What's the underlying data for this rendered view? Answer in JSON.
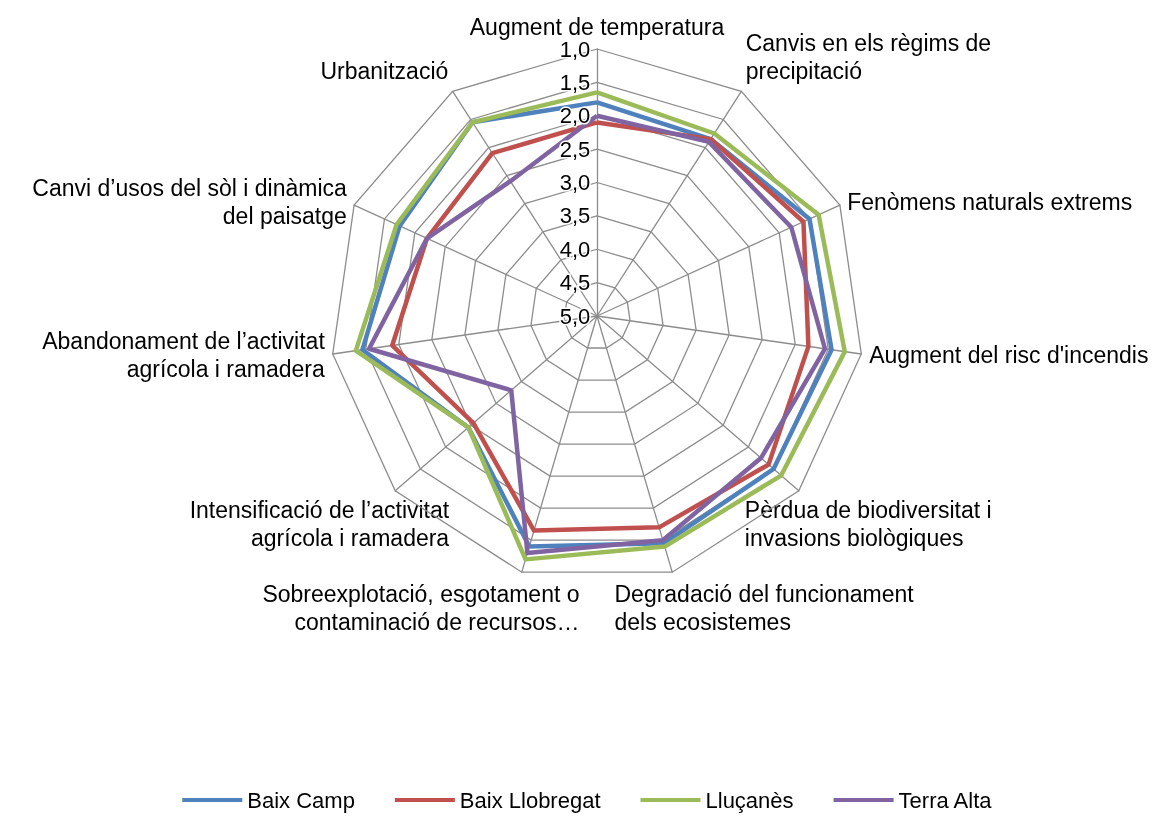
{
  "chart_data": {
    "type": "radar",
    "categories": [
      "Augment de temperatura",
      "Canvis en els règims de precipitació",
      "Fenòmens naturals extrems",
      "Augment del risc d'incendis",
      "Pèrdua de biodiversitat i invasions biològiques",
      "Degradació del funcionament dels ecosistemes",
      "Sobreexplotació, esgotament o contaminació de recursos…",
      "Intensificació de l’activitat agrícola i ramadera",
      "Abandonament de l’activitat agrícola i ramadera",
      "Canvi d’usos del sòl i dinàmica del paisatge",
      "Urbanització"
    ],
    "series": [
      {
        "name": "Baix Camp",
        "color": "#4f81bd",
        "values": [
          1.8,
          1.85,
          1.5,
          1.45,
          1.5,
          1.45,
          1.4,
          2.45,
          1.45,
          1.75,
          1.55
        ]
      },
      {
        "name": "Baix Llobregat",
        "color": "#c0504d",
        "values": [
          2.1,
          1.85,
          1.6,
          1.8,
          1.6,
          1.7,
          1.65,
          2.55,
          1.9,
          2.2,
          2.1
        ]
      },
      {
        "name": "Lluçanès",
        "color": "#9bbb59",
        "values": [
          1.65,
          1.75,
          1.35,
          1.25,
          1.35,
          1.4,
          1.2,
          2.45,
          1.35,
          1.7,
          1.55
        ]
      },
      {
        "name": "Terra Alta",
        "color": "#8064a2",
        "values": [
          2.0,
          1.9,
          1.8,
          1.55,
          1.75,
          1.5,
          1.3,
          3.3,
          1.55,
          2.2,
          2.6
        ]
      }
    ],
    "ylim": [
      5,
      1
    ],
    "yticks": [
      {
        "value": 1,
        "label": "1,0"
      },
      {
        "value": 1.5,
        "label": "1,5"
      },
      {
        "value": 2,
        "label": "2,0"
      },
      {
        "value": 2.5,
        "label": "2,5"
      },
      {
        "value": 3,
        "label": "3,0"
      },
      {
        "value": 3.5,
        "label": "3,5"
      },
      {
        "value": 4,
        "label": "4,0"
      },
      {
        "value": 4.5,
        "label": "4,5"
      },
      {
        "value": 5,
        "label": "5,0"
      }
    ],
    "legend": "bottom",
    "marker": "none",
    "line_style": "solid"
  }
}
